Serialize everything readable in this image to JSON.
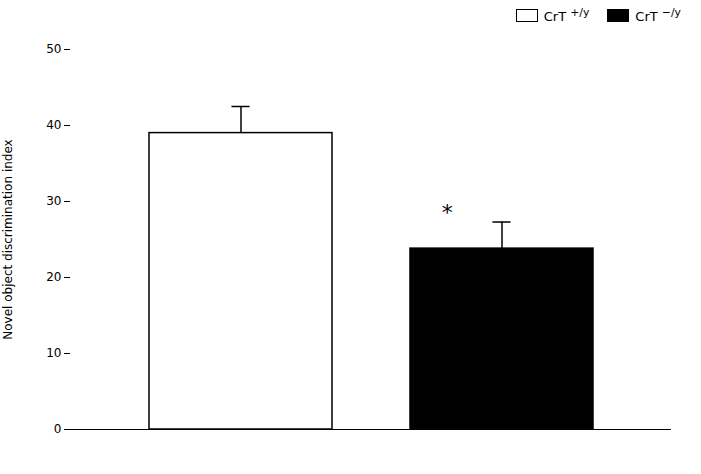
{
  "chart_data": {
    "type": "bar",
    "categories": [
      "CrT +/y",
      "CrT −/y"
    ],
    "values": [
      39.0,
      23.8
    ],
    "errors": [
      3.5,
      3.5
    ],
    "colors": [
      "#ffffff",
      "#000000"
    ],
    "ylabel": "Novel object discrimination index",
    "ylim": [
      0,
      50
    ],
    "yticks": [
      0,
      10,
      20,
      30,
      40,
      50
    ],
    "legend": "upper right",
    "grid": false,
    "tick_labels": "y",
    "annotations": [
      {
        "text": "*",
        "category": "CrT −/y"
      }
    ]
  }
}
